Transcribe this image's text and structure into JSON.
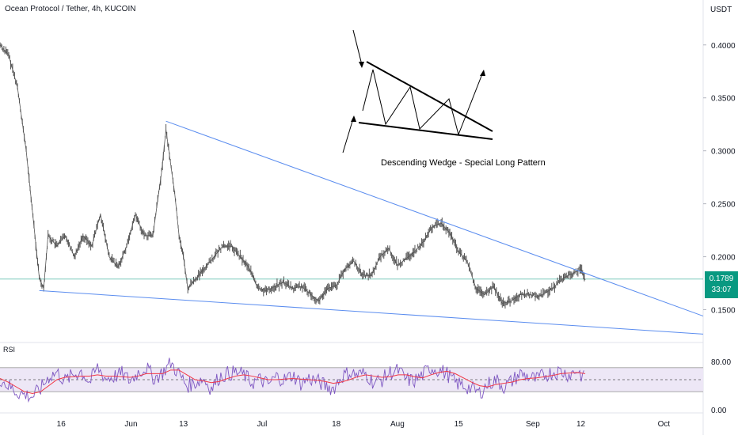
{
  "chart_data": {
    "type": "line",
    "title": "Ocean Protocol / Tether, 4h, KUCOIN",
    "ylabel": "USDT",
    "ylim": [
      0.125,
      0.42
    ],
    "yticks": [
      0.4,
      0.35,
      0.3,
      0.25,
      0.2,
      0.15
    ],
    "ytick_labels": [
      "0.4000",
      "0.3500",
      "0.3000",
      "0.2500",
      "0.2000",
      "0.1500"
    ],
    "xtick_labels": [
      "16",
      "Jun",
      "13",
      "Jul",
      "18",
      "Aug",
      "15",
      "Sep",
      "12",
      "Oct"
    ],
    "xticks": [
      "2022-05-16",
      "2022-06-01",
      "2022-06-13",
      "2022-07-01",
      "2022-07-18",
      "2022-08-01",
      "2022-08-15",
      "2022-09-01",
      "2022-09-12",
      "2022-10-01"
    ],
    "xlim": [
      "2022-05-02",
      "2022-10-10"
    ],
    "current_price": "0.1789",
    "countdown": "33:07",
    "price_series": {
      "x": [
        "2022-05-02",
        "2022-05-04",
        "2022-05-06",
        "2022-05-08",
        "2022-05-10",
        "2022-05-11",
        "2022-05-12",
        "2022-05-13",
        "2022-05-15",
        "2022-05-17",
        "2022-05-19",
        "2022-05-21",
        "2022-05-23",
        "2022-05-25",
        "2022-05-27",
        "2022-05-29",
        "2022-05-31",
        "2022-06-02",
        "2022-06-04",
        "2022-06-06",
        "2022-06-08",
        "2022-06-09",
        "2022-06-10",
        "2022-06-11",
        "2022-06-12",
        "2022-06-13",
        "2022-06-14",
        "2022-06-16",
        "2022-06-18",
        "2022-06-20",
        "2022-06-22",
        "2022-06-24",
        "2022-06-26",
        "2022-06-28",
        "2022-06-30",
        "2022-07-02",
        "2022-07-04",
        "2022-07-06",
        "2022-07-08",
        "2022-07-10",
        "2022-07-12",
        "2022-07-14",
        "2022-07-16",
        "2022-07-18",
        "2022-07-20",
        "2022-07-22",
        "2022-07-24",
        "2022-07-26",
        "2022-07-28",
        "2022-07-30",
        "2022-08-01",
        "2022-08-03",
        "2022-08-05",
        "2022-08-07",
        "2022-08-09",
        "2022-08-11",
        "2022-08-13",
        "2022-08-15",
        "2022-08-17",
        "2022-08-19",
        "2022-08-21",
        "2022-08-23",
        "2022-08-25",
        "2022-08-27",
        "2022-08-29",
        "2022-08-31",
        "2022-09-02",
        "2022-09-04",
        "2022-09-06",
        "2022-09-08",
        "2022-09-10",
        "2022-09-12",
        "2022-09-13"
      ],
      "y": [
        0.4,
        0.39,
        0.36,
        0.3,
        0.22,
        0.18,
        0.17,
        0.22,
        0.21,
        0.22,
        0.2,
        0.22,
        0.21,
        0.24,
        0.2,
        0.19,
        0.21,
        0.24,
        0.22,
        0.22,
        0.28,
        0.32,
        0.29,
        0.26,
        0.22,
        0.2,
        0.17,
        0.18,
        0.19,
        0.2,
        0.21,
        0.21,
        0.2,
        0.19,
        0.17,
        0.168,
        0.172,
        0.176,
        0.17,
        0.172,
        0.165,
        0.158,
        0.17,
        0.173,
        0.188,
        0.196,
        0.183,
        0.182,
        0.2,
        0.208,
        0.192,
        0.198,
        0.205,
        0.215,
        0.228,
        0.232,
        0.222,
        0.205,
        0.195,
        0.17,
        0.164,
        0.172,
        0.156,
        0.158,
        0.164,
        0.165,
        0.162,
        0.166,
        0.172,
        0.18,
        0.184,
        0.188,
        0.178
      ]
    },
    "trendlines": [
      {
        "x": [
          "2022-06-09",
          "2022-10-10"
        ],
        "y": [
          0.328,
          0.144
        ]
      },
      {
        "x": [
          "2022-05-11",
          "2022-10-10"
        ],
        "y": [
          0.168,
          0.127
        ]
      }
    ],
    "horizontal_line": 0.1789,
    "annotation": "Descending Wedge - Special Long Pattern",
    "rsi": {
      "label": "RSI",
      "ylim": [
        0,
        100
      ],
      "band": [
        30,
        70
      ],
      "middle": 50,
      "ytick_labels": [
        "80.00",
        "0.00"
      ],
      "yticks": [
        80,
        0
      ],
      "rsi_values": [
        52,
        40,
        30,
        25,
        22,
        35,
        55,
        62,
        48,
        58,
        64,
        45,
        70,
        52,
        55,
        60,
        48,
        62,
        70,
        52,
        62,
        78,
        60,
        40,
        45,
        52,
        35,
        55,
        60,
        62,
        58,
        45,
        50,
        42,
        55,
        50,
        58,
        44,
        52,
        48,
        40,
        35,
        55,
        62,
        58,
        60,
        45,
        50,
        62,
        65,
        50,
        48,
        58,
        70,
        66,
        60,
        45,
        40,
        35,
        28,
        42,
        50,
        38,
        48,
        60,
        55,
        50,
        58,
        62,
        64,
        58,
        66,
        50
      ],
      "ma_values": [
        52,
        46,
        38,
        30,
        27,
        30,
        40,
        50,
        54,
        55,
        56,
        56,
        58,
        56,
        56,
        55,
        54,
        56,
        60,
        60,
        60,
        66,
        66,
        58,
        50,
        48,
        45,
        47,
        52,
        56,
        58,
        56,
        53,
        50,
        50,
        51,
        52,
        51,
        50,
        49,
        47,
        44,
        46,
        50,
        55,
        58,
        56,
        54,
        55,
        58,
        58,
        55,
        53,
        58,
        62,
        64,
        60,
        53,
        46,
        40,
        38,
        42,
        44,
        46,
        50,
        52,
        53,
        55,
        57,
        60,
        61,
        62,
        60
      ]
    },
    "colors": {
      "candle": "#555555",
      "trendline": "#5b8def",
      "price_line": "#089981",
      "rsi_line": "#7e57c2",
      "rsi_ma": "#f23645",
      "rsi_band_fill": "#ede7f6"
    }
  }
}
